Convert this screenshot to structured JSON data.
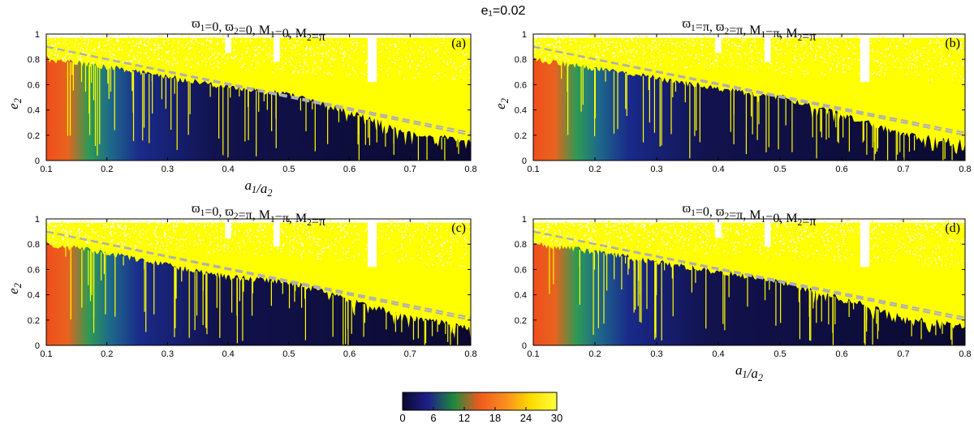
{
  "figure_title": "e₁=0.02",
  "colors": {
    "chaotic": "#ffff00",
    "regular_low": "#0b0a2e",
    "escape": "#ffffff",
    "resonance_line": "#b0b0b0"
  },
  "colorbar": {
    "min": 0,
    "max": 30,
    "ticks": [
      "0",
      "6",
      "12",
      "18",
      "24",
      "30"
    ],
    "stops": [
      "#0a0a30",
      "#1f1f8a",
      "#1e8a3c",
      "#f05a1e",
      "#fa8c1e",
      "#ffdc00",
      "#ffff3c"
    ]
  },
  "chart_data": [
    {
      "type": "heatmap",
      "panel": "(a)",
      "title": "ϖ1=0, ϖ2=0, M1=0, M2=π",
      "xlabel": "a1/a2",
      "ylabel": "e2",
      "xlim": [
        0.1,
        0.8
      ],
      "ylim": [
        0,
        1
      ],
      "xticks": [
        "0.1",
        "0.2",
        "0.3",
        "0.4",
        "0.5",
        "0.6",
        "0.7",
        "0.8"
      ],
      "yticks": [
        "0",
        "0.2",
        "0.4",
        "0.6",
        "0.8",
        "1"
      ],
      "stability_boundary": {
        "x": [
          0.1,
          0.2,
          0.3,
          0.4,
          0.5,
          0.6,
          0.7,
          0.8
        ],
        "e2": [
          0.8,
          0.74,
          0.66,
          0.58,
          0.52,
          0.38,
          0.22,
          0.15
        ]
      },
      "resonance_lines": [
        {
          "x": [
            0.1,
            0.8
          ],
          "e2": [
            0.9,
            0.2
          ]
        },
        {
          "x": [
            0.1,
            0.8
          ],
          "e2": [
            0.9,
            0.22
          ]
        }
      ]
    },
    {
      "type": "heatmap",
      "panel": "(b)",
      "title": "ϖ1=π, ϖ2=π, M1=π, M2=π",
      "xlabel": "",
      "ylabel": "e2",
      "xlim": [
        0.1,
        0.8
      ],
      "ylim": [
        0,
        1
      ],
      "xticks": [
        "0.1",
        "0.2",
        "0.3",
        "0.4",
        "0.5",
        "0.6",
        "0.7",
        "0.8"
      ],
      "yticks": [
        "0",
        "0.2",
        "0.4",
        "0.6",
        "0.8",
        "1"
      ],
      "stability_boundary": {
        "x": [
          0.1,
          0.2,
          0.3,
          0.4,
          0.5,
          0.6,
          0.7,
          0.8
        ],
        "e2": [
          0.8,
          0.73,
          0.65,
          0.57,
          0.5,
          0.36,
          0.21,
          0.14
        ]
      },
      "resonance_lines": [
        {
          "x": [
            0.1,
            0.8
          ],
          "e2": [
            0.9,
            0.2
          ]
        },
        {
          "x": [
            0.1,
            0.8
          ],
          "e2": [
            0.9,
            0.22
          ]
        }
      ]
    },
    {
      "type": "heatmap",
      "panel": "(c)",
      "title": "ϖ1=0, ϖ2=π, M1=π, M2=π",
      "xlabel": "",
      "ylabel": "e2",
      "xlim": [
        0.1,
        0.8
      ],
      "ylim": [
        0,
        1
      ],
      "xticks": [
        "0.1",
        "0.2",
        "0.3",
        "0.4",
        "0.5",
        "0.6",
        "0.7",
        "0.8"
      ],
      "yticks": [
        "0",
        "0.2",
        "0.4",
        "0.6",
        "0.8",
        "1"
      ],
      "stability_boundary": {
        "x": [
          0.1,
          0.2,
          0.3,
          0.4,
          0.5,
          0.6,
          0.7,
          0.8
        ],
        "e2": [
          0.8,
          0.73,
          0.63,
          0.54,
          0.5,
          0.36,
          0.22,
          0.14
        ]
      },
      "resonance_lines": [
        {
          "x": [
            0.1,
            0.8
          ],
          "e2": [
            0.9,
            0.2
          ]
        },
        {
          "x": [
            0.1,
            0.8
          ],
          "e2": [
            0.9,
            0.22
          ]
        }
      ]
    },
    {
      "type": "heatmap",
      "panel": "(d)",
      "title": "ϖ1=0, ϖ2=π, M1=0, M2=π",
      "xlabel": "a1/a2",
      "ylabel": "",
      "xlim": [
        0.1,
        0.8
      ],
      "ylim": [
        0,
        1
      ],
      "xticks": [
        "0.1",
        "0.2",
        "0.3",
        "0.4",
        "0.5",
        "0.6",
        "0.7",
        "0.8"
      ],
      "yticks": [
        "0",
        "0.2",
        "0.4",
        "0.6",
        "0.8",
        "1"
      ],
      "stability_boundary": {
        "x": [
          0.1,
          0.2,
          0.3,
          0.4,
          0.5,
          0.6,
          0.7,
          0.8
        ],
        "e2": [
          0.8,
          0.74,
          0.66,
          0.58,
          0.5,
          0.37,
          0.22,
          0.15
        ]
      },
      "resonance_lines": [
        {
          "x": [
            0.1,
            0.8
          ],
          "e2": [
            0.9,
            0.2
          ]
        },
        {
          "x": [
            0.1,
            0.8
          ],
          "e2": [
            0.9,
            0.22
          ]
        }
      ]
    }
  ]
}
